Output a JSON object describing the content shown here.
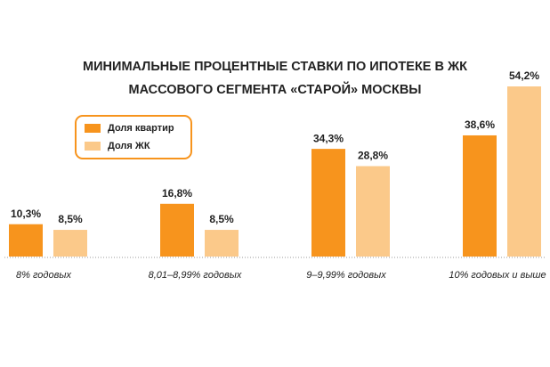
{
  "chart_data": {
    "type": "bar",
    "title": [
      "МИНИМАЛЬНЫЕ ПРОЦЕНТНЫЕ СТАВКИ ПО ИПОТЕКЕ В ЖК",
      "МАССОВОГО СЕГМЕНТА «СТАРОЙ» МОСКВЫ"
    ],
    "categories": [
      "8% годовых",
      "8,01–8,99% годовых",
      "9–9,99% годовых",
      "10% годовых и выше"
    ],
    "series": [
      {
        "name": "Доля квартир",
        "color": "#f7941d",
        "values": [
          10.3,
          16.8,
          34.3,
          38.6
        ],
        "value_labels": [
          "10,3%",
          "16,8%",
          "34,3%",
          "38,6%"
        ]
      },
      {
        "name": "Доля ЖК",
        "color": "#fbc98a",
        "values": [
          8.5,
          8.5,
          28.8,
          54.2
        ],
        "value_labels": [
          "8,5%",
          "8,5%",
          "28,8%",
          "54,2%"
        ]
      }
    ],
    "legend": "upper left"
  }
}
